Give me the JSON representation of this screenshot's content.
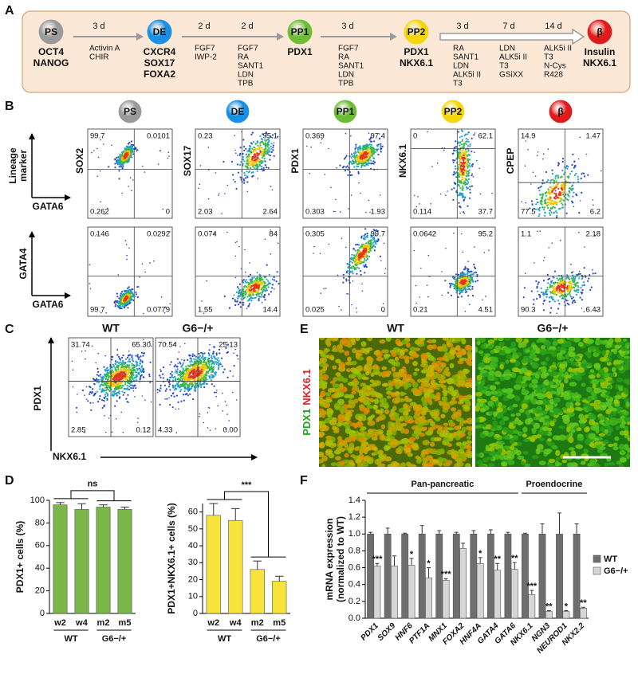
{
  "panel_a": {
    "label": "A",
    "stages": [
      {
        "name": "PS",
        "color": "#9a9a9a",
        "markers": [
          "OCT4",
          "NANOG"
        ]
      },
      {
        "name": "DE",
        "color": "#1a8fe3",
        "markers": [
          "CXCR4",
          "SOX17",
          "FOXA2"
        ]
      },
      {
        "name": "PP1",
        "color": "#6cbd34",
        "markers": [
          "PDX1"
        ]
      },
      {
        "name": "PP2",
        "color": "#f4d60a",
        "markers": [
          "PDX1",
          "NKX6.1"
        ]
      },
      {
        "name": "β",
        "color": "#e01b1b",
        "markers": [
          "Insulin",
          "NKX6.1"
        ]
      }
    ],
    "steps": [
      {
        "days": [
          "3 d"
        ],
        "reagents": [
          [
            "Activin A",
            "CHIR"
          ]
        ]
      },
      {
        "days": [
          "2 d",
          "2 d"
        ],
        "reagents": [
          [
            "FGF7",
            "IWP-2"
          ],
          [
            "FGF7",
            "RA",
            "SANT1",
            "LDN",
            "TPB"
          ]
        ]
      },
      {
        "days": [
          "3 d"
        ],
        "reagents": [
          [
            "FGF7",
            "RA",
            "SANT1",
            "LDN",
            "TPB"
          ]
        ]
      },
      {
        "days": [
          "3 d",
          "7 d",
          "14 d"
        ],
        "reagents": [
          [
            "RA",
            "SANT1",
            "LDN",
            "ALK5i II",
            "T3"
          ],
          [
            "LDN",
            "ALK5i II",
            "T3",
            "GSiXX"
          ],
          [
            "ALK5i II",
            "T3",
            "N-Cys",
            "R428"
          ]
        ]
      }
    ]
  },
  "panel_b": {
    "label": "B",
    "stages": [
      "PS",
      "DE",
      "PP1",
      "PP2",
      "β"
    ],
    "rows": [
      {
        "y_axis": [
          "Lineage",
          "marker"
        ],
        "x_axis": "GATA6",
        "plots": [
          {
            "y_label": "SOX2",
            "quadrants": [
              "99.7",
              "0.0101",
              "0.262",
              "0"
            ]
          },
          {
            "y_label": "SOX17",
            "quadrants": [
              "0.23",
              "95.1",
              "2.03",
              "2.64"
            ]
          },
          {
            "y_label": "PDX1",
            "quadrants": [
              "0.369",
              "97.4",
              "0.303",
              "1.93"
            ]
          },
          {
            "y_label": "NKX6.1",
            "quadrants": [
              "0",
              "62.1",
              "0.114",
              "37.7"
            ]
          },
          {
            "y_label": "CPEP",
            "quadrants": [
              "14.9",
              "1.47",
              "77.5",
              "6.2"
            ]
          }
        ]
      },
      {
        "y_axis": [
          "GATA4"
        ],
        "x_axis": "GATA6",
        "plots": [
          {
            "quadrants": [
              "0.146",
              "0.0292",
              "99.7",
              "0.0779"
            ]
          },
          {
            "quadrants": [
              "0.074",
              "84",
              "1.55",
              "14.4"
            ]
          },
          {
            "quadrants": [
              "0.305",
              "99.7",
              "0.025",
              "0"
            ]
          },
          {
            "quadrants": [
              "0.0642",
              "95.2",
              "0.21",
              "4.51"
            ]
          },
          {
            "quadrants": [
              "1.1",
              "2.18",
              "90.3",
              "6.43"
            ]
          }
        ]
      }
    ]
  },
  "panel_c": {
    "label": "C",
    "y_axis": "PDX1",
    "x_axis": "NKX6.1",
    "plots": [
      {
        "title": "WT",
        "quadrants": [
          "31.74",
          "65.30",
          "2.85",
          "0.12"
        ]
      },
      {
        "title": "G6−/+",
        "quadrants": [
          "70.54",
          "25.13",
          "4.33",
          "0.00"
        ]
      }
    ]
  },
  "panel_e": {
    "label": "E",
    "titles": [
      "WT",
      "G6−/+"
    ],
    "stain_labels": [
      {
        "text": "PDX1",
        "color": "#1ea51e"
      },
      {
        "text": "NKX6.1",
        "color": "#e21d1d"
      }
    ]
  },
  "chart_data": [
    {
      "type": "bar",
      "panel_label": "D",
      "y_label": [
        "PDX1+ cells (%)"
      ],
      "categories": [
        "w2",
        "w4",
        "m2",
        "m5"
      ],
      "groups": [
        "WT",
        "G6−/+"
      ],
      "values": [
        96,
        92,
        94,
        92
      ],
      "errors": [
        2,
        5,
        2,
        2
      ],
      "color": "#7ab648",
      "comparison": "ns",
      "ylim": [
        0,
        100
      ],
      "yticks": [
        0,
        20,
        40,
        60,
        80,
        100
      ]
    },
    {
      "type": "bar",
      "y_label": [
        "PDX1+NKX6.1+ cells (%)"
      ],
      "categories": [
        "w2",
        "w4",
        "m2",
        "m5"
      ],
      "groups": [
        "WT",
        "G6−/+"
      ],
      "values": [
        58,
        55,
        26,
        19
      ],
      "errors": [
        7,
        7,
        5,
        3
      ],
      "color": "#f7e43a",
      "comparison": "***",
      "ylim": [
        0,
        65
      ],
      "yticks": [
        0,
        10,
        20,
        30,
        40,
        50,
        60
      ]
    },
    {
      "type": "bar",
      "panel_label": "F",
      "y_label": [
        "mRNA expression",
        "(normalized to WT)"
      ],
      "group_labels": [
        "Pan-pancreatic",
        "Proendocrine"
      ],
      "categories": [
        "PDX1",
        "SOX9",
        "HNF6",
        "PTF1A",
        "MNX1",
        "FOXA2",
        "HNF4A",
        "GATA4",
        "GATA6",
        "NKX6.1",
        "NGN3",
        "NEUROD1",
        "NKX2.2"
      ],
      "series": [
        {
          "name": "WT",
          "color": "#6e6e6e",
          "values": [
            1,
            1,
            1,
            1,
            1,
            1,
            1,
            1,
            1,
            1,
            1,
            1,
            1
          ],
          "errors": [
            0.02,
            0.07,
            0.01,
            0.1,
            0.04,
            0.02,
            0.04,
            0.05,
            0.02,
            0.01,
            0.12,
            0.25,
            0.12
          ]
        },
        {
          "name": "G6−/+",
          "color": "#d6d6d6",
          "values": [
            0.62,
            0.62,
            0.63,
            0.48,
            0.45,
            0.83,
            0.65,
            0.57,
            0.58,
            0.28,
            0.08,
            0.08,
            0.12
          ],
          "errors": [
            0.03,
            0.12,
            0.08,
            0.12,
            0.02,
            0.06,
            0.07,
            0.08,
            0.08,
            0.05,
            0.01,
            0.01,
            0.01
          ]
        }
      ],
      "significance": [
        "***",
        null,
        "*",
        "*",
        "***",
        null,
        "*",
        "**",
        "**",
        "***",
        "**",
        "*",
        "**"
      ],
      "ylim": [
        0,
        1.4
      ],
      "yticks": [
        {
          "value": 0,
          "label": "0.0"
        },
        0.2,
        0.4,
        0.6,
        0.8,
        {
          "value": 1,
          "label": "1.0"
        },
        1.2,
        1.4
      ]
    }
  ]
}
